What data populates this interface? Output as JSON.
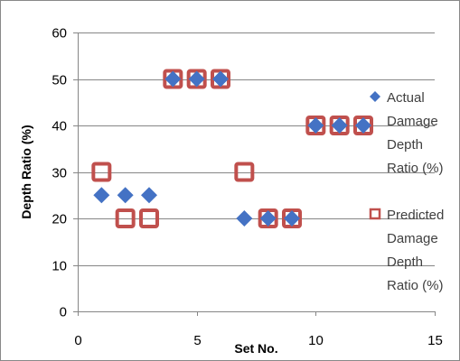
{
  "chart_data": {
    "type": "scatter",
    "xlabel": "Set No.",
    "ylabel": "Depth Ratio (%)",
    "xlim": [
      0,
      15
    ],
    "ylim": [
      0,
      60
    ],
    "xticks": [
      0,
      5,
      10,
      15
    ],
    "yticks": [
      0,
      10,
      20,
      30,
      40,
      50,
      60
    ],
    "grid": "horizontal",
    "legend_position": "right",
    "series": [
      {
        "name": "Actual Damage Depth Ratio (%)",
        "legend_lines": [
          "Actual",
          "Damage",
          "Depth",
          "Ratio (%)"
        ],
        "marker": "diamond",
        "color": "#4472C4",
        "x": [
          1,
          2,
          3,
          4,
          5,
          6,
          7,
          8,
          9,
          10,
          11,
          12
        ],
        "y": [
          25,
          25,
          25,
          50,
          50,
          50,
          20,
          20,
          20,
          40,
          40,
          40
        ]
      },
      {
        "name": "Predicted Damage Depth Ratio (%)",
        "legend_lines": [
          "Predicted",
          "Damage",
          "Depth",
          "Ratio (%)"
        ],
        "marker": "square-open",
        "color": "#C0504D",
        "x": [
          1,
          2,
          3,
          4,
          5,
          6,
          7,
          8,
          9,
          10,
          11,
          12
        ],
        "y": [
          30,
          20,
          20,
          50,
          50,
          50,
          30,
          20,
          20,
          40,
          40,
          40
        ]
      }
    ]
  },
  "colors": {
    "grid": "#868686",
    "axis": "#868686"
  }
}
